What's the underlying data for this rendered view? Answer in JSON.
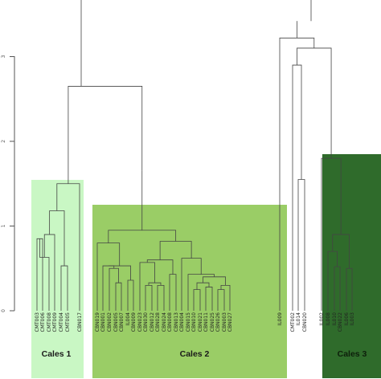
{
  "axis": {
    "ticks": [
      "0",
      "1",
      "2",
      "3"
    ]
  },
  "leaves": [
    "CMT003",
    "CMT006",
    "CMT008",
    "CMT009",
    "CMT004",
    "CMT005",
    "CBN017",
    "CBN019",
    "CBN001",
    "CBN002",
    "CBN005",
    "CBN007",
    "IL004",
    "CBN009",
    "CBN023",
    "CBN030",
    "CBN012",
    "CBN028",
    "CBN024",
    "CBN008",
    "CBN013",
    "CBN004",
    "CBN015",
    "CBN010",
    "CBN021",
    "CBN011",
    "CBN025",
    "CBN026",
    "CBN003",
    "CBN027",
    "IL009",
    "CMT002",
    "IL014",
    "CBN020",
    "IL002",
    "IL008",
    "IL010",
    "CBN022",
    "IL006",
    "IL003"
  ],
  "clusters": [
    {
      "label": "Cales 1",
      "color": "#c9f7c4",
      "text_color": "#1a1a1a"
    },
    {
      "label": "Cales 2",
      "color": "#9acd66",
      "text_color": "#1a1a1a"
    },
    {
      "label": "Cales 3",
      "color": "#2f6b2b",
      "text_color": "#0d1f0b"
    }
  ]
}
